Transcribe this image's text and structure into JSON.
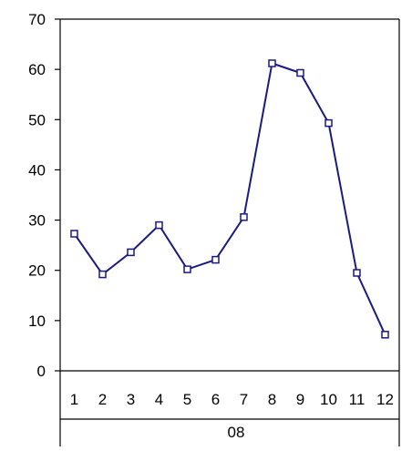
{
  "chart_data": {
    "type": "line",
    "categories": [
      "1",
      "2",
      "3",
      "4",
      "5",
      "6",
      "7",
      "8",
      "9",
      "10",
      "11",
      "12"
    ],
    "group_label": "08",
    "series": [
      {
        "values": [
          27.3,
          19.2,
          23.6,
          29.0,
          20.2,
          22.1,
          30.6,
          61.2,
          59.3,
          49.3,
          19.5,
          7.2
        ]
      }
    ],
    "title": "",
    "xlabel": "",
    "ylabel": "",
    "ylim": [
      0,
      70
    ],
    "yticks": [
      0,
      10,
      20,
      30,
      40,
      50,
      60,
      70
    ],
    "grid": false,
    "legend": "none",
    "colors": {
      "line": "#1a1a80",
      "marker_fill": "#ffffff",
      "axis": "#000000"
    }
  }
}
